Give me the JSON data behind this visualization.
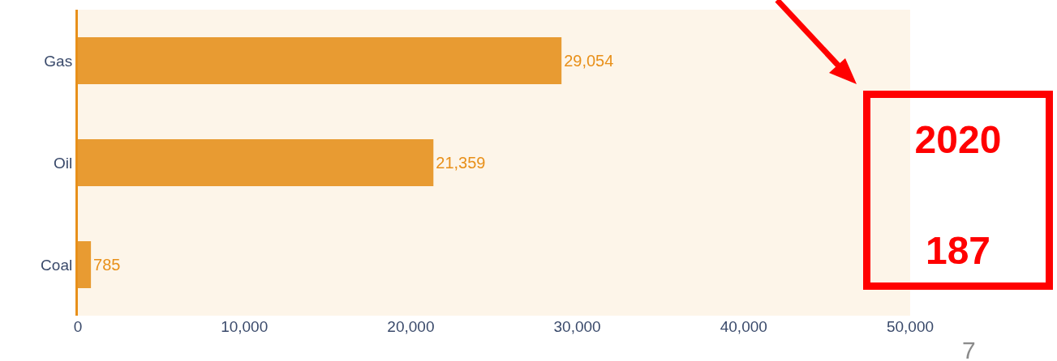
{
  "chart_data": {
    "type": "bar",
    "orientation": "horizontal",
    "categories": [
      "Gas",
      "Oil",
      "Coal"
    ],
    "values": [
      29054,
      21359,
      785
    ],
    "value_labels": [
      "29,054",
      "21,359",
      "785"
    ],
    "color": "#e89b32",
    "xlim": [
      0,
      50000
    ],
    "xticks": [
      0,
      {
        "value": 10000,
        "label": "10,000"
      },
      {
        "value": 20000,
        "label": "20,000"
      },
      {
        "value": 30000,
        "label": "30,000"
      },
      {
        "value": 40000,
        "label": "40,000"
      },
      {
        "value": 50000,
        "label": "50,000"
      }
    ],
    "grid": false,
    "annotations": [
      "2020",
      "187",
      "7"
    ]
  }
}
